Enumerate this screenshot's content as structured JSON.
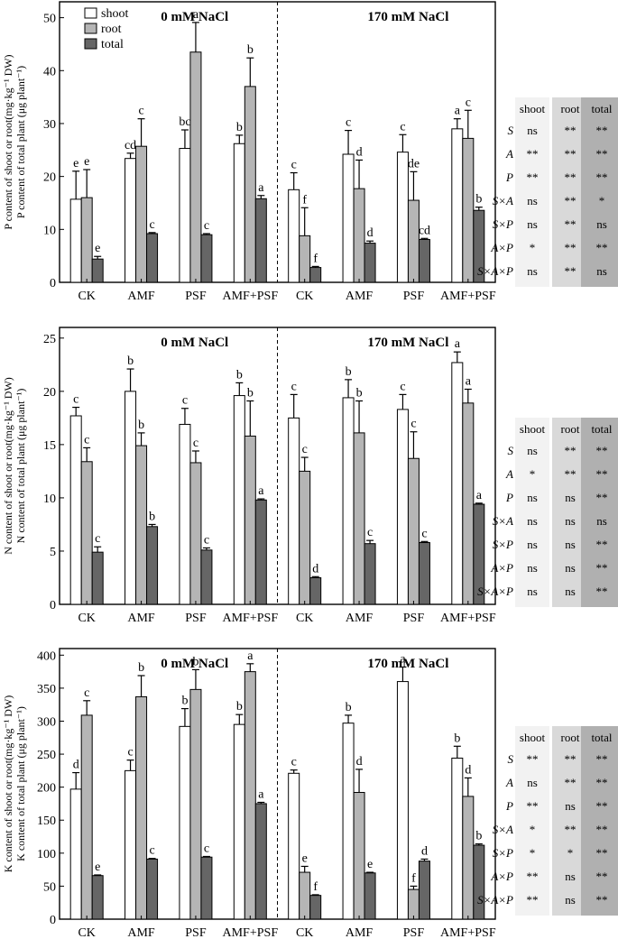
{
  "chart_data": [
    {
      "type": "bar",
      "id": "p",
      "ylabel": "P content of  shoot or root(mg·kg⁻¹ DW)",
      "ylabel2": "P content of  total plant (μg plant⁻¹)",
      "ylim": [
        0,
        53
      ],
      "yticks": [
        0,
        10,
        20,
        30,
        40,
        50
      ],
      "panel_labels": [
        "0 mM  NaCl",
        "170 mM NaCl"
      ],
      "categories": [
        "CK",
        "AMF",
        "PSF",
        "AMF+PSF",
        "CK",
        "AMF",
        "PSF",
        "AMF+PSF"
      ],
      "legend": [
        "shoot",
        "root",
        "total"
      ],
      "series": [
        {
          "name": "shoot",
          "color": "#ffffff",
          "values": [
            15.7,
            23.4,
            25.3,
            26.2,
            17.5,
            24.2,
            24.6,
            29.0
          ],
          "errors": [
            5.3,
            1.0,
            3.5,
            1.6,
            3.2,
            4.5,
            3.3,
            1.9
          ],
          "letters": [
            "e",
            "cd",
            "bc",
            "b",
            "c",
            "c",
            "c",
            "a"
          ]
        },
        {
          "name": "root",
          "color": "#b5b5b5",
          "values": [
            16.0,
            25.7,
            43.5,
            37.0,
            8.8,
            17.7,
            15.5,
            27.2
          ],
          "errors": [
            5.3,
            5.2,
            5.6,
            5.4,
            5.3,
            5.4,
            5.4,
            5.3
          ],
          "letters": [
            "e",
            "c",
            "a",
            "b",
            "f",
            "d",
            "de",
            "c"
          ]
        },
        {
          "name": "total",
          "color": "#666666",
          "values": [
            4.4,
            9.2,
            9.0,
            15.8,
            2.8,
            7.4,
            8.1,
            13.6
          ],
          "errors": [
            0.5,
            0.2,
            0.2,
            0.6,
            0.2,
            0.4,
            0.2,
            0.6
          ],
          "letters": [
            "e",
            "c",
            "c",
            "a",
            "f",
            "d",
            "cd",
            "b"
          ]
        }
      ],
      "table": {
        "headers": [
          "shoot",
          "root",
          "total"
        ],
        "rows": [
          {
            "label": "S",
            "values": [
              "ns",
              "**",
              "**"
            ]
          },
          {
            "label": "A",
            "values": [
              "**",
              "**",
              "**"
            ]
          },
          {
            "label": "P",
            "values": [
              "**",
              "**",
              "**"
            ]
          },
          {
            "label": "S×A",
            "values": [
              "ns",
              "**",
              "*"
            ]
          },
          {
            "label": "S×P",
            "values": [
              "ns",
              "**",
              "ns"
            ]
          },
          {
            "label": "A×P",
            "values": [
              "*",
              "**",
              "**"
            ]
          },
          {
            "label": "S×A×P",
            "values": [
              "ns",
              "**",
              "ns"
            ]
          }
        ]
      }
    },
    {
      "type": "bar",
      "id": "n",
      "ylabel": "N content of  shoot or root(mg·kg⁻¹ DW)",
      "ylabel2": "N content of  total plant (μg plant⁻¹)",
      "ylim": [
        0,
        26
      ],
      "yticks": [
        0,
        5,
        10,
        15,
        20,
        25
      ],
      "panel_labels": [
        "0 mM  NaCl",
        "170 mM NaCl"
      ],
      "categories": [
        "CK",
        "AMF",
        "PSF",
        "AMF+PSF",
        "CK",
        "AMF",
        "PSF",
        "AMF+PSF"
      ],
      "legend": [],
      "series": [
        {
          "name": "shoot",
          "color": "#ffffff",
          "values": [
            17.7,
            20.0,
            16.9,
            19.6,
            17.5,
            19.4,
            18.3,
            22.7
          ],
          "errors": [
            0.8,
            2.1,
            1.5,
            1.2,
            2.2,
            1.7,
            1.4,
            1.0
          ],
          "letters": [
            "c",
            "b",
            "c",
            "b",
            "c",
            "b",
            "c",
            "a"
          ]
        },
        {
          "name": "root",
          "color": "#b5b5b5",
          "values": [
            13.4,
            14.9,
            13.3,
            15.8,
            12.5,
            16.1,
            13.7,
            18.9
          ],
          "errors": [
            1.3,
            1.2,
            1.1,
            3.3,
            1.3,
            3.0,
            2.5,
            1.3
          ],
          "letters": [
            "c",
            "b",
            "c",
            "b",
            "c",
            "b",
            "c",
            "a"
          ]
        },
        {
          "name": "total",
          "color": "#666666",
          "values": [
            4.9,
            7.3,
            5.1,
            9.8,
            2.5,
            5.7,
            5.8,
            9.4
          ],
          "errors": [
            0.5,
            0.2,
            0.2,
            0.1,
            0.1,
            0.3,
            0.1,
            0.1
          ],
          "letters": [
            "c",
            "b",
            "c",
            "a",
            "d",
            "c",
            "c",
            "a"
          ]
        }
      ],
      "table": {
        "headers": [
          "shoot",
          "root",
          "total"
        ],
        "rows": [
          {
            "label": "S",
            "values": [
              "ns",
              "**",
              "**"
            ]
          },
          {
            "label": "A",
            "values": [
              "*",
              "**",
              "**"
            ]
          },
          {
            "label": "P",
            "values": [
              "ns",
              "ns",
              "**"
            ]
          },
          {
            "label": "S×A",
            "values": [
              "ns",
              "ns",
              "ns"
            ]
          },
          {
            "label": "S×P",
            "values": [
              "ns",
              "ns",
              "**"
            ]
          },
          {
            "label": "A×P",
            "values": [
              "ns",
              "ns",
              "**"
            ]
          },
          {
            "label": "S×A×P",
            "values": [
              "ns",
              "ns",
              "**"
            ]
          }
        ]
      }
    },
    {
      "type": "bar",
      "id": "k",
      "ylabel": "K content of  shoot or root(mg·kg⁻¹ DW)",
      "ylabel2": "K content of  total plant (μg plant⁻¹)",
      "ylim": [
        0,
        410
      ],
      "yticks": [
        0,
        50,
        100,
        150,
        200,
        250,
        300,
        350,
        400
      ],
      "panel_labels": [
        "0 mM  NaCl",
        "170 mM NaCl"
      ],
      "categories": [
        "CK",
        "AMF",
        "PSF",
        "AMF+PSF",
        "CK",
        "AMF",
        "PSF",
        "AMF+PSF"
      ],
      "legend": [],
      "series": [
        {
          "name": "shoot",
          "color": "#ffffff",
          "values": [
            197,
            225,
            292,
            295,
            221,
            297,
            360,
            244
          ],
          "errors": [
            25,
            16,
            27,
            15,
            5,
            12,
            22,
            18
          ],
          "letters": [
            "d",
            "c",
            "b",
            "b",
            "c",
            "b",
            "a",
            "b"
          ]
        },
        {
          "name": "root",
          "color": "#b5b5b5",
          "values": [
            309,
            337,
            348,
            375,
            71,
            192,
            45,
            186
          ],
          "errors": [
            22,
            32,
            30,
            12,
            9,
            35,
            5,
            28
          ],
          "letters": [
            "c",
            "b",
            "b",
            "a",
            "e",
            "d",
            "f",
            "d"
          ]
        },
        {
          "name": "total",
          "color": "#666666",
          "values": [
            66,
            91,
            94,
            175,
            36,
            70,
            88,
            112
          ],
          "errors": [
            1,
            1,
            1,
            2,
            1,
            1,
            3,
            2
          ],
          "letters": [
            "e",
            "c",
            "c",
            "a",
            "f",
            "e",
            "d",
            "b"
          ]
        }
      ],
      "table": {
        "headers": [
          "shoot",
          "root",
          "total"
        ],
        "rows": [
          {
            "label": "S",
            "values": [
              "**",
              "**",
              "**"
            ]
          },
          {
            "label": "A",
            "values": [
              "ns",
              "**",
              "**"
            ]
          },
          {
            "label": "P",
            "values": [
              "**",
              "ns",
              "**"
            ]
          },
          {
            "label": "S×A",
            "values": [
              "*",
              "**",
              "**"
            ]
          },
          {
            "label": "S×P",
            "values": [
              "*",
              "*",
              "**"
            ]
          },
          {
            "label": "A×P",
            "values": [
              "**",
              "ns",
              "**"
            ]
          },
          {
            "label": "S×A×P",
            "values": [
              "**",
              "ns",
              "**"
            ]
          }
        ]
      }
    }
  ]
}
